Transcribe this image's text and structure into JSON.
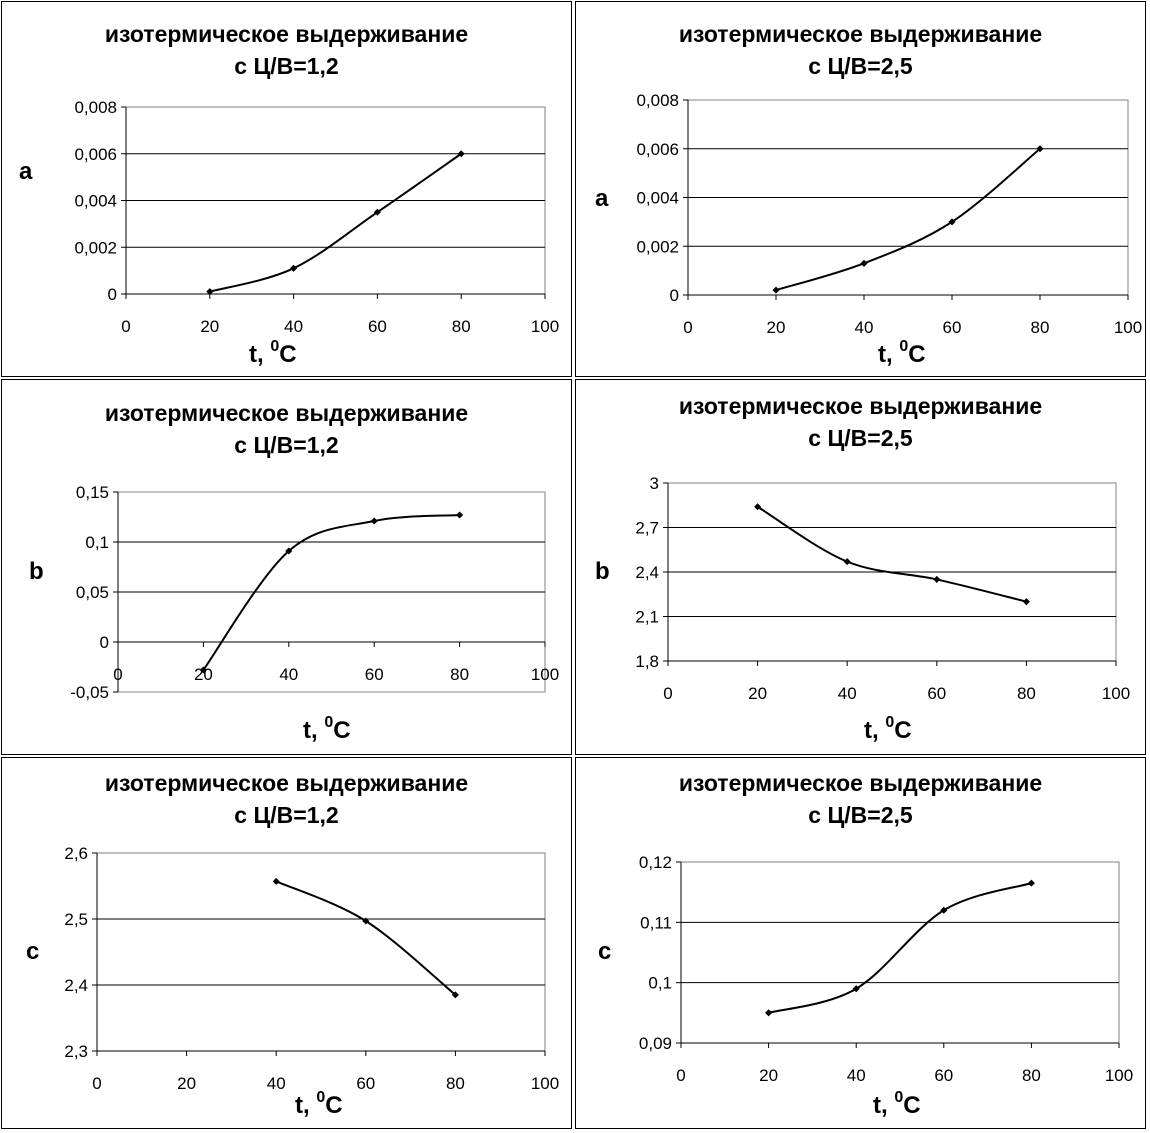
{
  "panels": [
    {
      "title_line1": "изотермическое выдерживание",
      "title_line2": "с Ц/В=1,2",
      "ylabel": "a",
      "xlabel_main": "t, ",
      "xlabel_sup": "0",
      "xlabel_unit": "C",
      "chart_data": {
        "type": "line",
        "x": [
          20,
          40,
          60,
          80
        ],
        "series": [
          {
            "values": [
              0.0001,
              0.0011,
              0.0035,
              0.006
            ]
          }
        ],
        "xlim": [
          0,
          100
        ],
        "xticks": [
          0,
          20,
          40,
          60,
          80,
          100
        ],
        "xtick_labels": [
          "0",
          "20",
          "40",
          "60",
          "80",
          "100"
        ],
        "ylim": [
          0,
          0.008
        ],
        "yticks": [
          0,
          0.002,
          0.004,
          0.006,
          0.008
        ],
        "ytick_labels": [
          "0",
          "0,002",
          "0,004",
          "0,006",
          "0,008"
        ],
        "grid": "horizontal"
      }
    },
    {
      "title_line1": "изотермическое выдерживание",
      "title_line2": "с Ц/В=2,5",
      "ylabel": "a",
      "xlabel_main": "t, ",
      "xlabel_sup": "0",
      "xlabel_unit": "C",
      "chart_data": {
        "type": "line",
        "x": [
          20,
          40,
          60,
          80
        ],
        "series": [
          {
            "values": [
              0.0002,
              0.0013,
              0.003,
              0.006
            ]
          }
        ],
        "xlim": [
          0,
          100
        ],
        "xticks": [
          0,
          20,
          40,
          60,
          80,
          100
        ],
        "xtick_labels": [
          "0",
          "20",
          "40",
          "60",
          "80",
          "100"
        ],
        "ylim": [
          0,
          0.008
        ],
        "yticks": [
          0,
          0.002,
          0.004,
          0.006,
          0.008
        ],
        "ytick_labels": [
          "0",
          "0,002",
          "0,004",
          "0,006",
          "0,008"
        ],
        "grid": "horizontal"
      }
    },
    {
      "title_line1": "изотермическое выдерживание",
      "title_line2": "с Ц/В=1,2",
      "ylabel": "b",
      "xlabel_main": "t, ",
      "xlabel_sup": "0",
      "xlabel_unit": "C",
      "chart_data": {
        "type": "line",
        "x": [
          20,
          40,
          60,
          80
        ],
        "series": [
          {
            "values": [
              -0.028,
              0.091,
              0.121,
              0.127
            ]
          }
        ],
        "xlim": [
          0,
          100
        ],
        "xticks": [
          0,
          20,
          40,
          60,
          80,
          100
        ],
        "xtick_labels": [
          "0",
          "20",
          "40",
          "60",
          "80",
          "100"
        ],
        "ylim": [
          -0.05,
          0.15
        ],
        "yticks": [
          -0.05,
          0,
          0.05,
          0.1,
          0.15
        ],
        "ytick_labels": [
          "-0,05",
          "0",
          "0,05",
          "0,1",
          "0,15"
        ],
        "grid": "horizontal"
      }
    },
    {
      "title_line1": "изотермическое выдерживание",
      "title_line2": "с Ц/В=2,5",
      "ylabel": "b",
      "xlabel_main": "t, ",
      "xlabel_sup": "0",
      "xlabel_unit": "C",
      "chart_data": {
        "type": "line",
        "x": [
          20,
          40,
          60,
          80
        ],
        "series": [
          {
            "values": [
              2.84,
              2.47,
              2.35,
              2.2
            ]
          }
        ],
        "xlim": [
          0,
          100
        ],
        "xticks": [
          0,
          20,
          40,
          60,
          80,
          100
        ],
        "xtick_labels": [
          "0",
          "20",
          "40",
          "60",
          "80",
          "100"
        ],
        "ylim": [
          1.8,
          3.0
        ],
        "yticks": [
          1.8,
          2.1,
          2.4,
          2.7,
          3.0
        ],
        "ytick_labels": [
          "1,8",
          "2,1",
          "2,4",
          "2,7",
          "3"
        ],
        "grid": "horizontal"
      }
    },
    {
      "title_line1": "изотермическое выдерживание",
      "title_line2": "с Ц/В=1,2",
      "ylabel": "c",
      "xlabel_main": "t, ",
      "xlabel_sup": "0",
      "xlabel_unit": "C",
      "chart_data": {
        "type": "line",
        "x": [
          40,
          60,
          80
        ],
        "series": [
          {
            "values": [
              2.557,
              2.497,
              2.385
            ]
          }
        ],
        "xlim": [
          0,
          100
        ],
        "xticks": [
          0,
          20,
          40,
          60,
          80,
          100
        ],
        "xtick_labels": [
          "0",
          "20",
          "40",
          "60",
          "80",
          "100"
        ],
        "ylim": [
          2.3,
          2.6
        ],
        "yticks": [
          2.3,
          2.4,
          2.5,
          2.6
        ],
        "ytick_labels": [
          "2,3",
          "2,4",
          "2,5",
          "2,6"
        ],
        "grid": "horizontal"
      }
    },
    {
      "title_line1": "изотермическое выдерживание",
      "title_line2": "с Ц/В=2,5",
      "ylabel": "c",
      "xlabel_main": "t, ",
      "xlabel_sup": "0",
      "xlabel_unit": "C",
      "chart_data": {
        "type": "line",
        "x": [
          20,
          40,
          60,
          80
        ],
        "series": [
          {
            "values": [
              0.095,
              0.099,
              0.112,
              0.1165
            ]
          }
        ],
        "xlim": [
          0,
          100
        ],
        "xticks": [
          0,
          20,
          40,
          60,
          80,
          100
        ],
        "xtick_labels": [
          "0",
          "20",
          "40",
          "60",
          "80",
          "100"
        ],
        "ylim": [
          0.09,
          0.12
        ],
        "yticks": [
          0.09,
          0.1,
          0.11,
          0.12
        ],
        "ytick_labels": [
          "0,09",
          "0,1",
          "0,11",
          "0,12"
        ],
        "grid": "horizontal"
      }
    }
  ]
}
